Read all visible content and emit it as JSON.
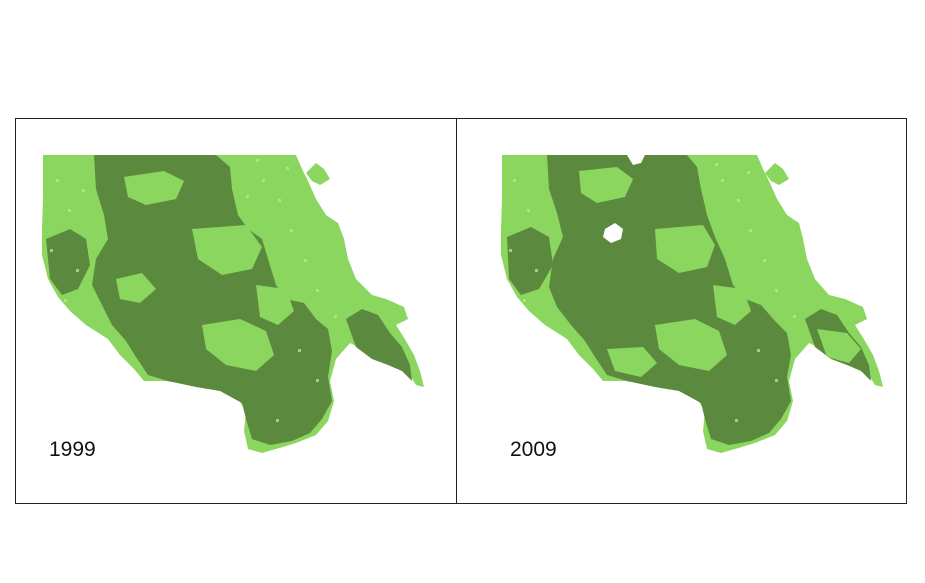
{
  "figure": {
    "panels": [
      {
        "year": "1999"
      },
      {
        "year": "2009"
      }
    ]
  },
  "colors": {
    "dark_vegetation": "#5b8a3e",
    "light_vegetation": "#8ad65e",
    "speckle": "#b6ec8c",
    "background": "#ffffff",
    "border": "#222222"
  },
  "legend_semantics": {
    "classes": [
      "dark-green-cover",
      "light-green-cover"
    ]
  }
}
